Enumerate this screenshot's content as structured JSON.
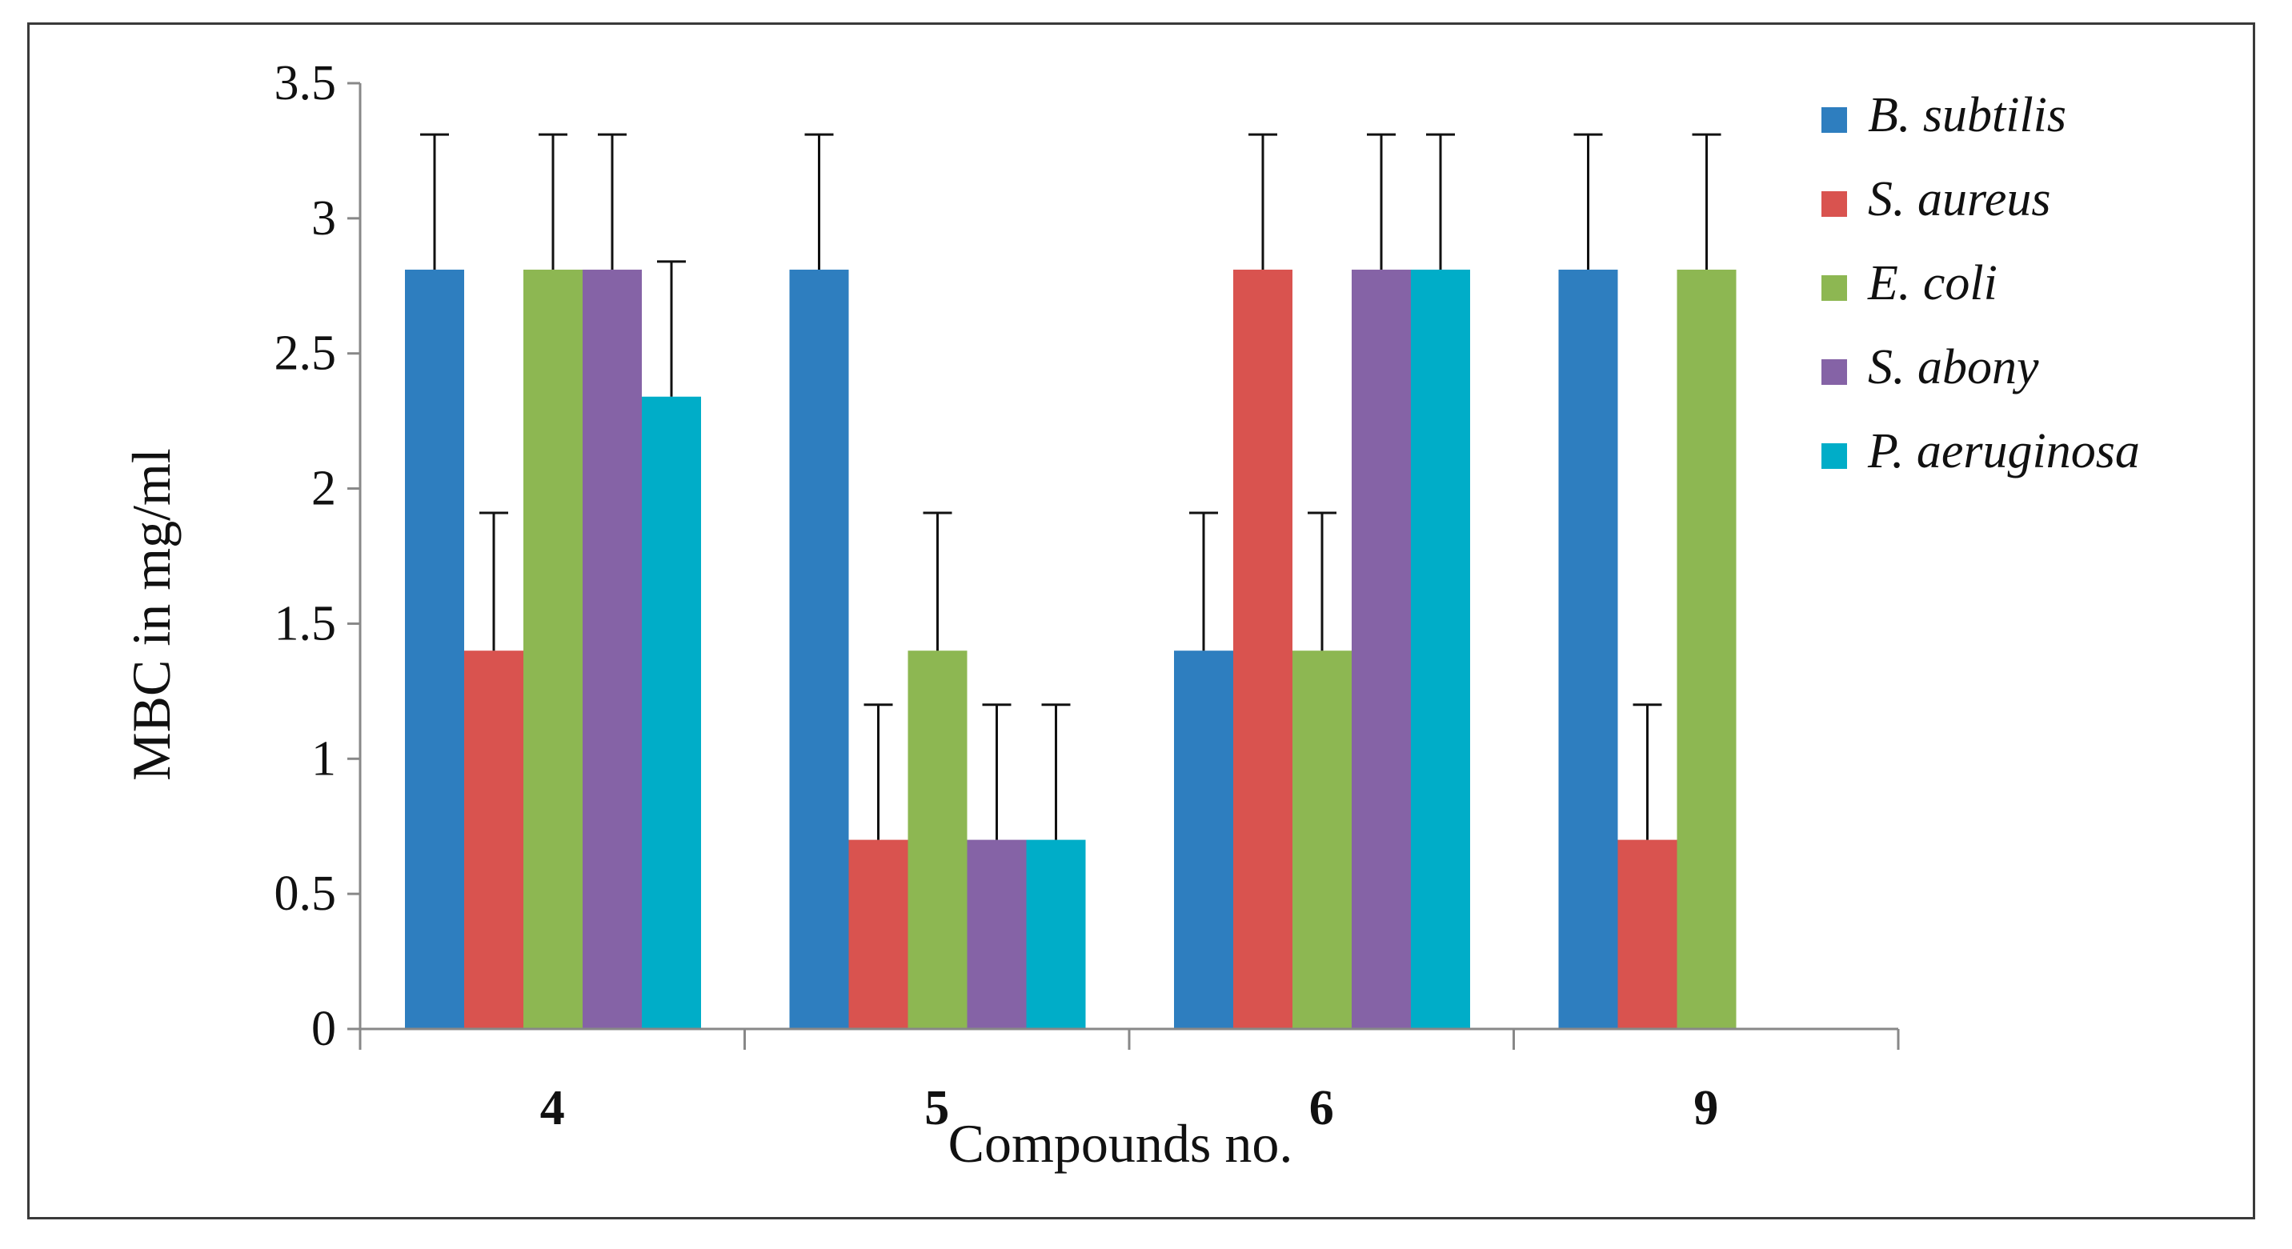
{
  "chart_data": {
    "type": "bar",
    "title": "",
    "xlabel": "Compounds no.",
    "ylabel": "MBC in mg/ml",
    "categories": [
      "4",
      "5",
      "6",
      "9"
    ],
    "ylim": [
      0,
      3.5
    ],
    "yticks": [
      "0",
      "0.5",
      "1",
      "1.5",
      "2",
      "2.5",
      "3",
      "3.5"
    ],
    "grid": false,
    "legend_position": "right",
    "series": [
      {
        "name": "B. subtilis",
        "color": "#2E7EBF",
        "values": [
          2.81,
          2.81,
          1.4,
          2.81
        ],
        "errors": [
          0.5,
          0.5,
          0.51,
          0.5
        ]
      },
      {
        "name": "S. aureus",
        "color": "#D9534F",
        "values": [
          1.4,
          0.7,
          2.81,
          0.7
        ],
        "errors": [
          0.51,
          0.5,
          0.5,
          0.5
        ]
      },
      {
        "name": "E. coli",
        "color": "#8DB752",
        "values": [
          2.81,
          1.4,
          1.4,
          2.81
        ],
        "errors": [
          0.5,
          0.51,
          0.51,
          0.5
        ]
      },
      {
        "name": "S. abony",
        "color": "#8563A6",
        "values": [
          2.81,
          0.7,
          2.81,
          null
        ],
        "errors": [
          0.5,
          0.5,
          0.5,
          null
        ]
      },
      {
        "name": "P. aeruginosa",
        "color": "#00ADC8",
        "values": [
          2.34,
          0.7,
          2.81,
          null
        ],
        "errors": [
          0.5,
          0.5,
          0.5,
          null
        ]
      }
    ]
  }
}
